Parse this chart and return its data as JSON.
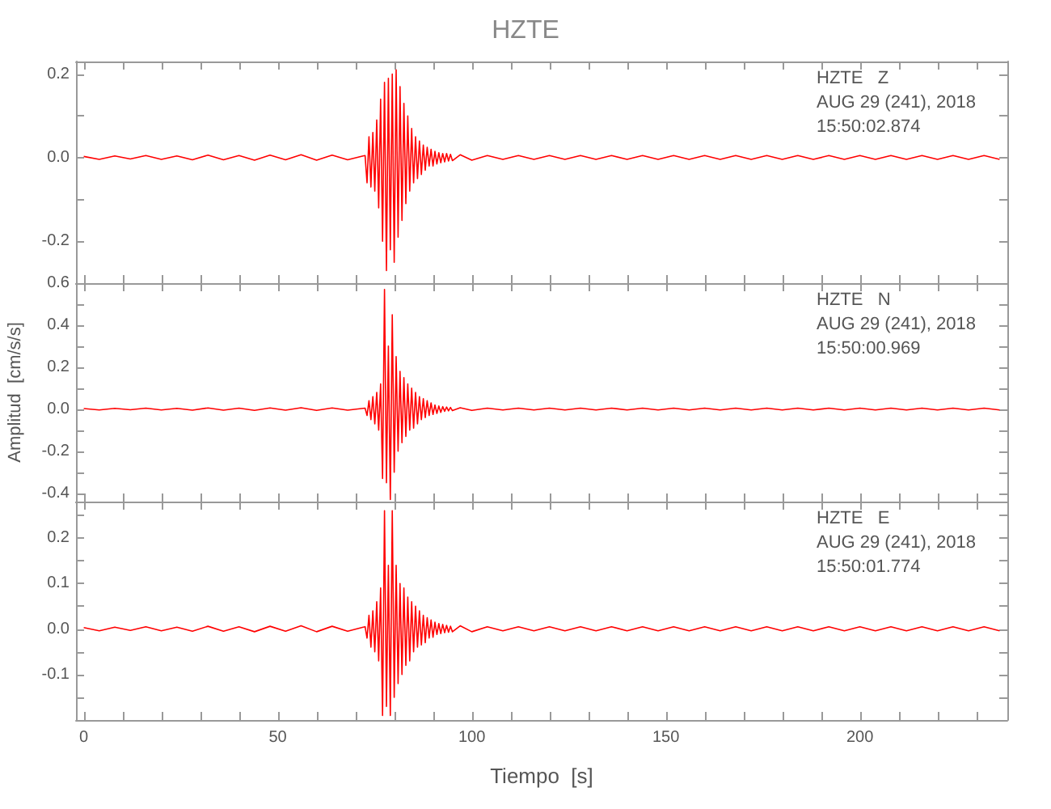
{
  "chart_data": [
    {
      "type": "line",
      "title": "HZTE",
      "annotations": [
        "HZTE   Z",
        "AUG 29 (241), 2018",
        "15:50:02.874"
      ],
      "x": [
        0,
        4,
        8,
        12,
        16,
        20,
        24,
        28,
        32,
        36,
        40,
        44,
        48,
        52,
        56,
        60,
        64,
        68,
        72,
        72.5,
        73,
        73.5,
        74,
        74.5,
        75,
        75.5,
        76,
        76.5,
        77,
        77.5,
        78,
        78.5,
        79,
        79.5,
        80,
        80.5,
        81,
        81.5,
        82,
        82.5,
        83,
        83.5,
        84,
        84.5,
        85,
        85.5,
        86,
        86.5,
        87,
        87.5,
        88,
        88.5,
        89,
        89.5,
        90,
        90.5,
        91,
        91.5,
        92,
        92.5,
        93,
        93.5,
        94,
        94.5,
        95,
        97,
        100,
        104,
        108,
        112,
        116,
        120,
        124,
        128,
        132,
        136,
        140,
        144,
        148,
        152,
        156,
        160,
        164,
        168,
        172,
        176,
        180,
        184,
        188,
        192,
        196,
        200,
        204,
        208,
        212,
        216,
        220,
        224,
        228,
        232,
        236
      ],
      "series": [
        {
          "color": "#ff0000",
          "values": [
            0.003,
            -0.004,
            0.004,
            -0.003,
            0.005,
            -0.004,
            0.004,
            -0.005,
            0.006,
            -0.005,
            0.005,
            -0.006,
            0.006,
            -0.005,
            0.007,
            -0.006,
            0.006,
            -0.005,
            0.004,
            0.005,
            -0.06,
            0.05,
            -0.07,
            0.06,
            -0.08,
            0.09,
            -0.12,
            0.14,
            -0.2,
            0.18,
            -0.27,
            0.19,
            -0.22,
            0.2,
            -0.25,
            0.21,
            -0.19,
            0.17,
            -0.15,
            0.13,
            -0.11,
            0.1,
            -0.08,
            0.07,
            -0.06,
            0.05,
            -0.05,
            0.04,
            -0.04,
            0.03,
            -0.03,
            0.025,
            -0.02,
            0.02,
            -0.02,
            0.015,
            -0.015,
            0.012,
            -0.012,
            0.01,
            -0.01,
            0.01,
            -0.008,
            0.008,
            -0.007,
            0.007,
            -0.006,
            0.005,
            -0.004,
            0.005,
            -0.004,
            0.005,
            -0.004,
            0.005,
            -0.004,
            0.005,
            -0.004,
            0.005,
            -0.004,
            0.005,
            -0.004,
            0.005,
            -0.004,
            0.005,
            -0.004,
            0.005,
            -0.004,
            0.005,
            -0.004,
            0.005,
            -0.004,
            0.005,
            -0.004,
            0.005,
            -0.004,
            0.005,
            -0.004,
            0.005,
            -0.004,
            0.005,
            -0.004
          ]
        }
      ],
      "xlim": [
        -2,
        238
      ],
      "xticks": [
        0,
        {
          "value": 10,
          "label": null
        },
        {
          "value": 20,
          "label": null
        },
        {
          "value": 30,
          "label": null
        },
        {
          "value": 40,
          "label": null
        },
        50,
        {
          "value": 60,
          "label": null
        },
        {
          "value": 70,
          "label": null
        },
        {
          "value": 80,
          "label": null
        },
        {
          "value": 90,
          "label": null
        },
        100,
        {
          "value": 110,
          "label": null
        },
        {
          "value": 120,
          "label": null
        },
        {
          "value": 130,
          "label": null
        },
        {
          "value": 140,
          "label": null
        },
        150,
        {
          "value": 160,
          "label": null
        },
        {
          "value": 170,
          "label": null
        },
        {
          "value": 180,
          "label": null
        },
        {
          "value": 190,
          "label": null
        },
        200,
        {
          "value": 210,
          "label": null
        },
        {
          "value": 220,
          "label": null
        },
        {
          "value": 230,
          "label": null
        }
      ],
      "ylim": [
        -0.3,
        0.23
      ],
      "yticks": [
        -0.2,
        {
          "value": -0.1,
          "label": null
        },
        {
          "value": 0,
          "label": "0.0"
        },
        {
          "value": 0.1,
          "label": null
        },
        0.2
      ],
      "tick_labels": "y"
    },
    {
      "type": "line",
      "ylabel": "Amplitud  [cm/s/s]",
      "annotations": [
        "HZTE   N",
        "AUG 29 (241), 2018",
        "15:50:00.969"
      ],
      "x": [
        0,
        4,
        8,
        12,
        16,
        20,
        24,
        28,
        32,
        36,
        40,
        44,
        48,
        52,
        56,
        60,
        64,
        68,
        72,
        72.5,
        73,
        73.5,
        74,
        74.5,
        75,
        75.5,
        76,
        76.5,
        77,
        77.5,
        78,
        78.5,
        79,
        79.5,
        80,
        80.5,
        81,
        81.5,
        82,
        82.5,
        83,
        83.5,
        84,
        84.5,
        85,
        85.5,
        86,
        86.5,
        87,
        87.5,
        88,
        88.5,
        89,
        89.5,
        90,
        90.5,
        91,
        91.5,
        92,
        92.5,
        93,
        93.5,
        94,
        94.5,
        95,
        97,
        100,
        104,
        108,
        112,
        116,
        120,
        124,
        128,
        132,
        136,
        140,
        144,
        148,
        152,
        156,
        160,
        164,
        168,
        172,
        176,
        180,
        184,
        188,
        192,
        196,
        200,
        204,
        208,
        212,
        216,
        220,
        224,
        228,
        232,
        236
      ],
      "series": [
        {
          "color": "#ff0000",
          "values": [
            0.003,
            -0.004,
            0.004,
            -0.003,
            0.005,
            -0.004,
            0.004,
            -0.005,
            0.006,
            -0.005,
            0.005,
            -0.006,
            0.006,
            -0.005,
            0.007,
            -0.006,
            0.006,
            -0.005,
            0.004,
            0.005,
            -0.03,
            0.04,
            -0.05,
            0.06,
            -0.07,
            0.08,
            -0.1,
            0.12,
            -0.33,
            0.57,
            -0.35,
            0.3,
            -0.43,
            0.45,
            -0.3,
            0.25,
            -0.2,
            0.18,
            -0.16,
            0.15,
            -0.13,
            0.12,
            -0.1,
            0.1,
            -0.09,
            0.08,
            -0.07,
            0.06,
            -0.05,
            0.05,
            -0.04,
            0.04,
            -0.03,
            0.03,
            -0.025,
            0.02,
            -0.02,
            0.015,
            -0.015,
            0.012,
            -0.01,
            0.01,
            -0.008,
            0.008,
            -0.007,
            0.007,
            -0.006,
            0.005,
            -0.004,
            0.005,
            -0.004,
            0.005,
            -0.004,
            0.005,
            -0.004,
            0.005,
            -0.004,
            0.005,
            -0.004,
            0.005,
            -0.004,
            0.005,
            -0.004,
            0.005,
            -0.004,
            0.005,
            -0.004,
            0.005,
            -0.004,
            0.005,
            -0.004,
            0.005,
            -0.004,
            0.005,
            -0.004,
            0.005,
            -0.004,
            0.005,
            -0.004,
            0.005,
            -0.004
          ]
        }
      ],
      "xlim": [
        -2,
        238
      ],
      "xticks": [
        0,
        {
          "value": 10,
          "label": null
        },
        {
          "value": 20,
          "label": null
        },
        {
          "value": 30,
          "label": null
        },
        {
          "value": 40,
          "label": null
        },
        50,
        {
          "value": 60,
          "label": null
        },
        {
          "value": 70,
          "label": null
        },
        {
          "value": 80,
          "label": null
        },
        {
          "value": 90,
          "label": null
        },
        100,
        {
          "value": 110,
          "label": null
        },
        {
          "value": 120,
          "label": null
        },
        {
          "value": 130,
          "label": null
        },
        {
          "value": 140,
          "label": null
        },
        150,
        {
          "value": 160,
          "label": null
        },
        {
          "value": 170,
          "label": null
        },
        {
          "value": 180,
          "label": null
        },
        {
          "value": 190,
          "label": null
        },
        200,
        {
          "value": 210,
          "label": null
        },
        {
          "value": 220,
          "label": null
        },
        {
          "value": 230,
          "label": null
        }
      ],
      "ylim": [
        -0.44,
        0.6
      ],
      "yticks": [
        -0.4,
        {
          "value": -0.3,
          "label": null
        },
        -0.2,
        {
          "value": -0.1,
          "label": null
        },
        {
          "value": 0,
          "label": "0.0"
        },
        {
          "value": 0.1,
          "label": null
        },
        0.2,
        {
          "value": 0.3,
          "label": null
        },
        0.4,
        {
          "value": 0.5,
          "label": null
        },
        0.6
      ],
      "tick_labels": "y"
    },
    {
      "type": "line",
      "xlabel": "Tiempo  [s]",
      "annotations": [
        "HZTE   E",
        "AUG 29 (241), 2018",
        "15:50:01.774"
      ],
      "x": [
        0,
        4,
        8,
        12,
        16,
        20,
        24,
        28,
        32,
        36,
        40,
        44,
        48,
        52,
        56,
        60,
        64,
        68,
        72,
        72.5,
        73,
        73.5,
        74,
        74.5,
        75,
        75.5,
        76,
        76.5,
        77,
        77.5,
        78,
        78.5,
        79,
        79.5,
        80,
        80.5,
        81,
        81.5,
        82,
        82.5,
        83,
        83.5,
        84,
        84.5,
        85,
        85.5,
        86,
        86.5,
        87,
        87.5,
        88,
        88.5,
        89,
        89.5,
        90,
        90.5,
        91,
        91.5,
        92,
        92.5,
        93,
        93.5,
        94,
        94.5,
        95,
        97,
        100,
        104,
        108,
        112,
        116,
        120,
        124,
        128,
        132,
        136,
        140,
        144,
        148,
        152,
        156,
        160,
        164,
        168,
        172,
        176,
        180,
        184,
        188,
        192,
        196,
        200,
        204,
        208,
        212,
        216,
        220,
        224,
        228,
        232,
        236
      ],
      "series": [
        {
          "color": "#ff0000",
          "values": [
            0.003,
            -0.004,
            0.004,
            -0.003,
            0.005,
            -0.004,
            0.004,
            -0.005,
            0.006,
            -0.005,
            0.005,
            -0.006,
            0.006,
            -0.005,
            0.007,
            -0.006,
            0.006,
            -0.005,
            0.004,
            0.005,
            -0.02,
            0.03,
            -0.04,
            0.04,
            -0.05,
            0.06,
            -0.07,
            0.09,
            -0.19,
            0.26,
            -0.17,
            0.14,
            -0.19,
            0.26,
            -0.15,
            0.14,
            -0.12,
            0.1,
            -0.1,
            0.09,
            -0.08,
            0.07,
            -0.07,
            0.06,
            -0.05,
            0.05,
            -0.04,
            0.04,
            -0.035,
            0.03,
            -0.03,
            0.025,
            -0.02,
            0.02,
            -0.018,
            0.015,
            -0.012,
            0.012,
            -0.01,
            0.01,
            -0.008,
            0.008,
            -0.007,
            0.006,
            -0.006,
            0.007,
            -0.006,
            0.005,
            -0.004,
            0.005,
            -0.004,
            0.005,
            -0.004,
            0.005,
            -0.004,
            0.005,
            -0.004,
            0.005,
            -0.004,
            0.005,
            -0.004,
            0.005,
            -0.004,
            0.005,
            -0.004,
            0.005,
            -0.004,
            0.005,
            -0.004,
            0.005,
            -0.004,
            0.005,
            -0.004,
            0.005,
            -0.004,
            0.005,
            -0.004,
            0.005,
            -0.004,
            0.005,
            -0.004
          ]
        }
      ],
      "xlim": [
        -2,
        238
      ],
      "xticks": [
        0,
        {
          "value": 10,
          "label": null
        },
        {
          "value": 20,
          "label": null
        },
        {
          "value": 30,
          "label": null
        },
        {
          "value": 40,
          "label": null
        },
        50,
        {
          "value": 60,
          "label": null
        },
        {
          "value": 70,
          "label": null
        },
        {
          "value": 80,
          "label": null
        },
        {
          "value": 90,
          "label": null
        },
        100,
        {
          "value": 110,
          "label": null
        },
        {
          "value": 120,
          "label": null
        },
        {
          "value": 130,
          "label": null
        },
        {
          "value": 140,
          "label": null
        },
        150,
        {
          "value": 160,
          "label": null
        },
        {
          "value": 170,
          "label": null
        },
        {
          "value": 180,
          "label": null
        },
        {
          "value": 190,
          "label": null
        },
        200,
        {
          "value": 210,
          "label": null
        },
        {
          "value": 220,
          "label": null
        },
        {
          "value": 230,
          "label": null
        }
      ],
      "ylim": [
        -0.2,
        0.28
      ],
      "yticks": [
        {
          "value": -0.15,
          "label": null
        },
        -0.1,
        {
          "value": -0.05,
          "label": null
        },
        {
          "value": 0,
          "label": "0.0"
        },
        {
          "value": 0.05,
          "label": null
        },
        0.1,
        {
          "value": 0.15,
          "label": null
        },
        0.2,
        {
          "value": 0.25,
          "label": null
        }
      ]
    }
  ]
}
